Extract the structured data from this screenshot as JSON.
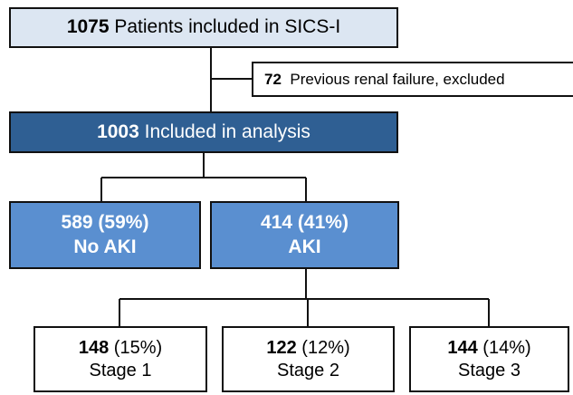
{
  "nodes": [
    {
      "count": "1075",
      "label": "Patients included in SICS-I"
    },
    {
      "count": "72",
      "label": "Previous renal failure, excluded"
    },
    {
      "count": "1003",
      "label": "Included in analysis"
    },
    {
      "count": "589",
      "percent": "(59%)",
      "label": "No AKI"
    },
    {
      "count": "414",
      "percent": "(41%)",
      "label": "AKI"
    },
    {
      "count": "148",
      "percent": "(15%)",
      "label": "Stage 1"
    },
    {
      "count": "122",
      "percent": "(12%)",
      "label": "Stage 2"
    },
    {
      "count": "144",
      "percent": "(14%)",
      "label": "Stage 3"
    }
  ]
}
